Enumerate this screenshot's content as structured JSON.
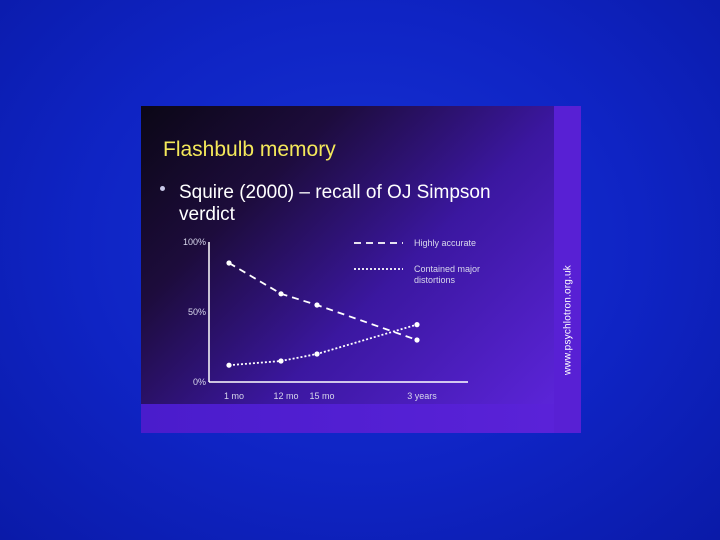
{
  "slide": {
    "title": "Flashbulb memory",
    "bullet": "Squire (2000) – recall of OJ Simpson verdict",
    "watermark": "www.psychlotron.org.uk"
  },
  "colors": {
    "background": "#1230d0",
    "title": "#f4e85a",
    "text": "#ffffff",
    "axis": "#ffffff"
  },
  "chart_data": {
    "type": "line",
    "categories": [
      "1 mo",
      "12 mo",
      "15 mo",
      "3 years"
    ],
    "x": [
      1,
      12,
      15,
      36
    ],
    "yticks": [
      "100%",
      "50%",
      "0%"
    ],
    "ylim": [
      0,
      100
    ],
    "legend_position": "top-right",
    "series": [
      {
        "name": "Highly accurate",
        "style": "dashed",
        "values": [
          85,
          63,
          55,
          30
        ]
      },
      {
        "name": "Contained major distortions",
        "style": "dotted",
        "values": [
          12,
          15,
          20,
          41
        ]
      }
    ]
  }
}
